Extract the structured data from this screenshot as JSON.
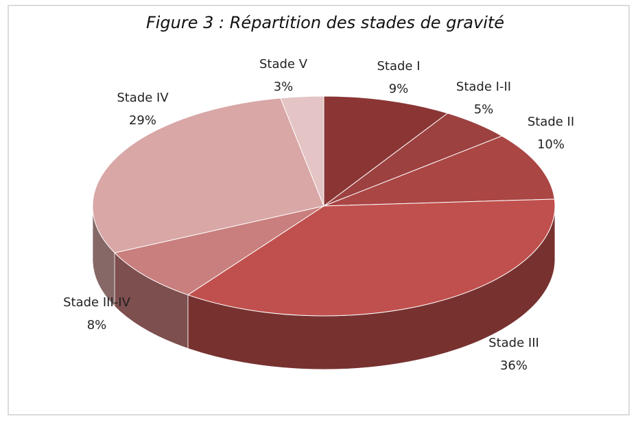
{
  "chart_data": {
    "type": "pie",
    "title": "Figure 3 : Répartition des stades de gravité",
    "categories": [
      "Stade I",
      "Stade I-II",
      "Stade II",
      "Stade III",
      "Stade III-IV",
      "Stade IV",
      "Stade V"
    ],
    "values": [
      9,
      5,
      10,
      36,
      8,
      29,
      3
    ],
    "value_labels": [
      "9%",
      "5%",
      "10%",
      "36%",
      "8%",
      "29%",
      "3%"
    ],
    "colors": [
      "#8b3535",
      "#9c4140",
      "#aa4644",
      "#c0504d",
      "#c97f7d",
      "#d8a7a6",
      "#e4c4c4"
    ]
  }
}
